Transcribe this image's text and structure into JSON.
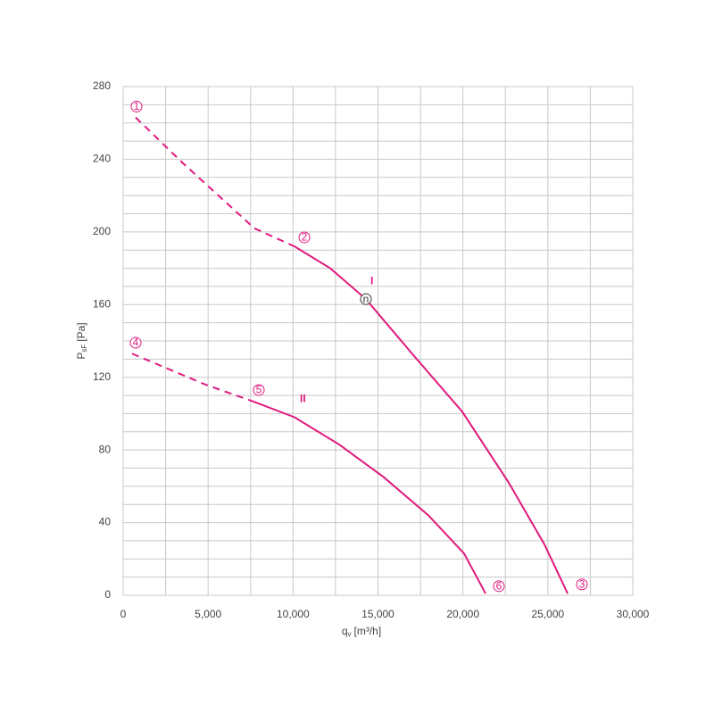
{
  "chart_data": {
    "type": "line",
    "ylabel": {
      "symbol": "P",
      "subscript": "sF",
      "unit": "[Pa]"
    },
    "xlabel": {
      "symbol": "q",
      "subscript": "v",
      "unit": "[m³/h]"
    },
    "xlim": [
      0,
      30000
    ],
    "xticks": [
      0,
      {
        "value": 5000,
        "label": "5,000"
      },
      {
        "value": 10000,
        "label": "10,000"
      },
      {
        "value": 15000,
        "label": "15,000"
      },
      {
        "value": 20000,
        "label": "20,000"
      },
      {
        "value": 25000,
        "label": "25,000"
      },
      {
        "value": 30000,
        "label": "30,000"
      }
    ],
    "ylim": [
      0,
      280
    ],
    "yticks": [
      0,
      40,
      80,
      120,
      160,
      200,
      240,
      280
    ],
    "grid": true,
    "series": [
      {
        "name": "I",
        "color": "#e0197d",
        "segments": [
          {
            "style": "dashed",
            "x": [
              735,
              3500,
              7723,
              10087
            ],
            "y": [
              263,
              238,
              202,
              192
            ]
          },
          {
            "style": "solid",
            "x": [
              10087,
              12189,
              14290,
              16917,
              19965,
              22697,
              24798,
              26165
            ],
            "y": [
              192,
              180,
              163,
              134,
              101,
              62,
              28,
              1
            ]
          }
        ]
      },
      {
        "name": "II",
        "color": "#e0197d",
        "segments": [
          {
            "style": "dashed",
            "x": [
              525,
              4834,
              7566
            ],
            "y": [
              133,
              116,
              107
            ]
          },
          {
            "style": "solid",
            "x": [
              7566,
              10087,
              12715,
              15342,
              17969,
              20070,
              21331
            ],
            "y": [
              107,
              98,
              83,
              65,
              44,
              23,
              1
            ]
          }
        ]
      }
    ],
    "annotations": [
      {
        "text": "1",
        "x": 788,
        "y": 269,
        "color": "#e0197d"
      },
      {
        "text": "2",
        "x": 10666,
        "y": 197,
        "color": "#e0197d"
      },
      {
        "text": "3",
        "x": 27005,
        "y": 6,
        "color": "#e0197d"
      },
      {
        "text": "4",
        "x": 735,
        "y": 139,
        "color": "#e0197d"
      },
      {
        "text": "5",
        "x": 7986,
        "y": 113,
        "color": "#e0197d"
      },
      {
        "text": "6",
        "x": 22119,
        "y": 5,
        "color": "#e0197d"
      },
      {
        "text": "n",
        "x": 14290,
        "y": 163,
        "color": "#333333"
      }
    ]
  }
}
